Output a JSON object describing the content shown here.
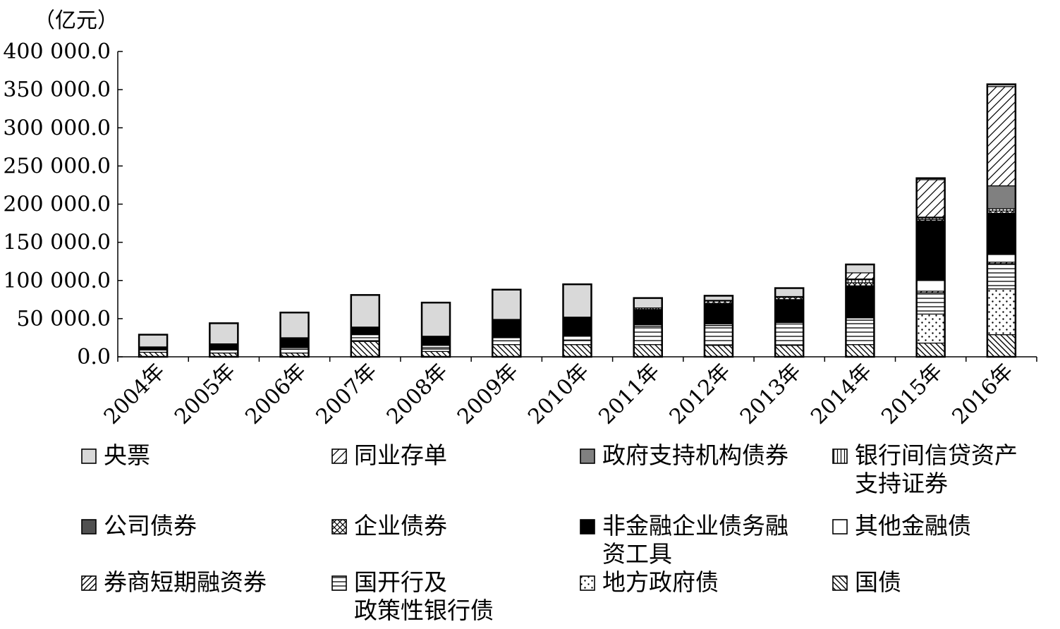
{
  "unit_label": "（亿元）",
  "colors": {
    "central_bill": "#d9d9d9",
    "gov_support": "#808080",
    "corporate": "#505050",
    "nonfin": "#000000"
  },
  "chart_data": {
    "type": "bar",
    "stacked": true,
    "ylabel": "（亿元）",
    "ylim": [
      0,
      400000
    ],
    "yticks": [
      "0.0",
      "50 000.0",
      "100 000.0",
      "150 000.0",
      "200 000.0",
      "250 000.0",
      "300 000.0",
      "350 000.0",
      "400 000.0"
    ],
    "ytick_values": [
      0,
      50000,
      100000,
      150000,
      200000,
      250000,
      300000,
      350000,
      400000
    ],
    "categories": [
      "2004年",
      "2005年",
      "2006年",
      "2007年",
      "2008年",
      "2009年",
      "2010年",
      "2011年",
      "2012年",
      "2013年",
      "2014年",
      "2015年",
      "2016年"
    ],
    "legend_position": "bottom",
    "series": [
      {
        "name": "国债",
        "pattern": "hatch-back",
        "values": [
          6000,
          5000,
          5000,
          20000,
          7000,
          16000,
          16000,
          16000,
          15000,
          15000,
          16000,
          18000,
          29000
        ]
      },
      {
        "name": "地方政府债",
        "pattern": "dots",
        "values": [
          0,
          0,
          0,
          0,
          0,
          0,
          0,
          0,
          0,
          0,
          0,
          38000,
          60000
        ]
      },
      {
        "name": "国开行及\n政策性银行债",
        "pattern": "horizontal",
        "values": [
          3000,
          4000,
          5000,
          5000,
          5000,
          5000,
          6000,
          24000,
          26000,
          28000,
          32000,
          28000,
          33000
        ]
      },
      {
        "name": "券商短期融资券",
        "pattern": "hatch-fwd",
        "values": [
          0,
          0,
          0,
          0,
          0,
          0,
          0,
          0,
          0,
          0,
          0,
          2000,
          2000
        ]
      },
      {
        "name": "其他金融债",
        "pattern": "white",
        "values": [
          0,
          0,
          2000,
          4000,
          3000,
          4000,
          5000,
          2000,
          2000,
          2000,
          3000,
          14000,
          10000
        ]
      },
      {
        "name": "非金融企业债务融资工具",
        "pattern": "black",
        "values": [
          4000,
          8000,
          13000,
          10000,
          12000,
          24000,
          25000,
          20000,
          27000,
          30000,
          42000,
          78000,
          54000
        ]
      },
      {
        "name": "企业债券",
        "pattern": "cross",
        "values": [
          0,
          0,
          0,
          0,
          0,
          0,
          0,
          2000,
          3000,
          3000,
          4000,
          2000,
          3000
        ]
      },
      {
        "name": "公司债券",
        "pattern": "dark",
        "values": [
          0,
          0,
          0,
          0,
          0,
          0,
          0,
          0,
          0,
          0,
          0,
          0,
          0
        ]
      },
      {
        "name": "银行间信贷资产\n支持证券",
        "pattern": "vertical",
        "values": [
          0,
          0,
          0,
          0,
          0,
          0,
          0,
          0,
          0,
          0,
          4000,
          2000,
          3000
        ]
      },
      {
        "name": "政府支持机构债券",
        "pattern": "gov",
        "values": [
          0,
          0,
          0,
          0,
          0,
          0,
          0,
          0,
          1000,
          1000,
          1000,
          1000,
          30000
        ]
      },
      {
        "name": "同业存单",
        "pattern": "hatch-fwd-wide",
        "values": [
          0,
          0,
          0,
          0,
          0,
          0,
          0,
          0,
          0,
          0,
          8000,
          49000,
          130000
        ]
      },
      {
        "name": "央票",
        "pattern": "light",
        "values": [
          16000,
          27000,
          33000,
          42000,
          44000,
          39000,
          43000,
          13000,
          6000,
          11000,
          11000,
          2000,
          3000
        ]
      }
    ]
  },
  "legend": [
    {
      "label": "央票",
      "pattern": "light"
    },
    {
      "label": "同业存单",
      "pattern": "hatch-fwd-wide"
    },
    {
      "label": "政府支持机构债券",
      "pattern": "gov"
    },
    {
      "label": "银行间信贷资产\n支持证券",
      "pattern": "vertical"
    },
    {
      "label": "公司债券",
      "pattern": "dark"
    },
    {
      "label": "企业债券",
      "pattern": "cross"
    },
    {
      "label": "非金融企业债务融\n资工具",
      "pattern": "black"
    },
    {
      "label": "其他金融债",
      "pattern": "white"
    },
    {
      "label": "券商短期融资券",
      "pattern": "hatch-fwd"
    },
    {
      "label": "国开行及\n政策性银行债",
      "pattern": "horizontal"
    },
    {
      "label": "地方政府债",
      "pattern": "dots"
    },
    {
      "label": "国债",
      "pattern": "hatch-back"
    }
  ]
}
